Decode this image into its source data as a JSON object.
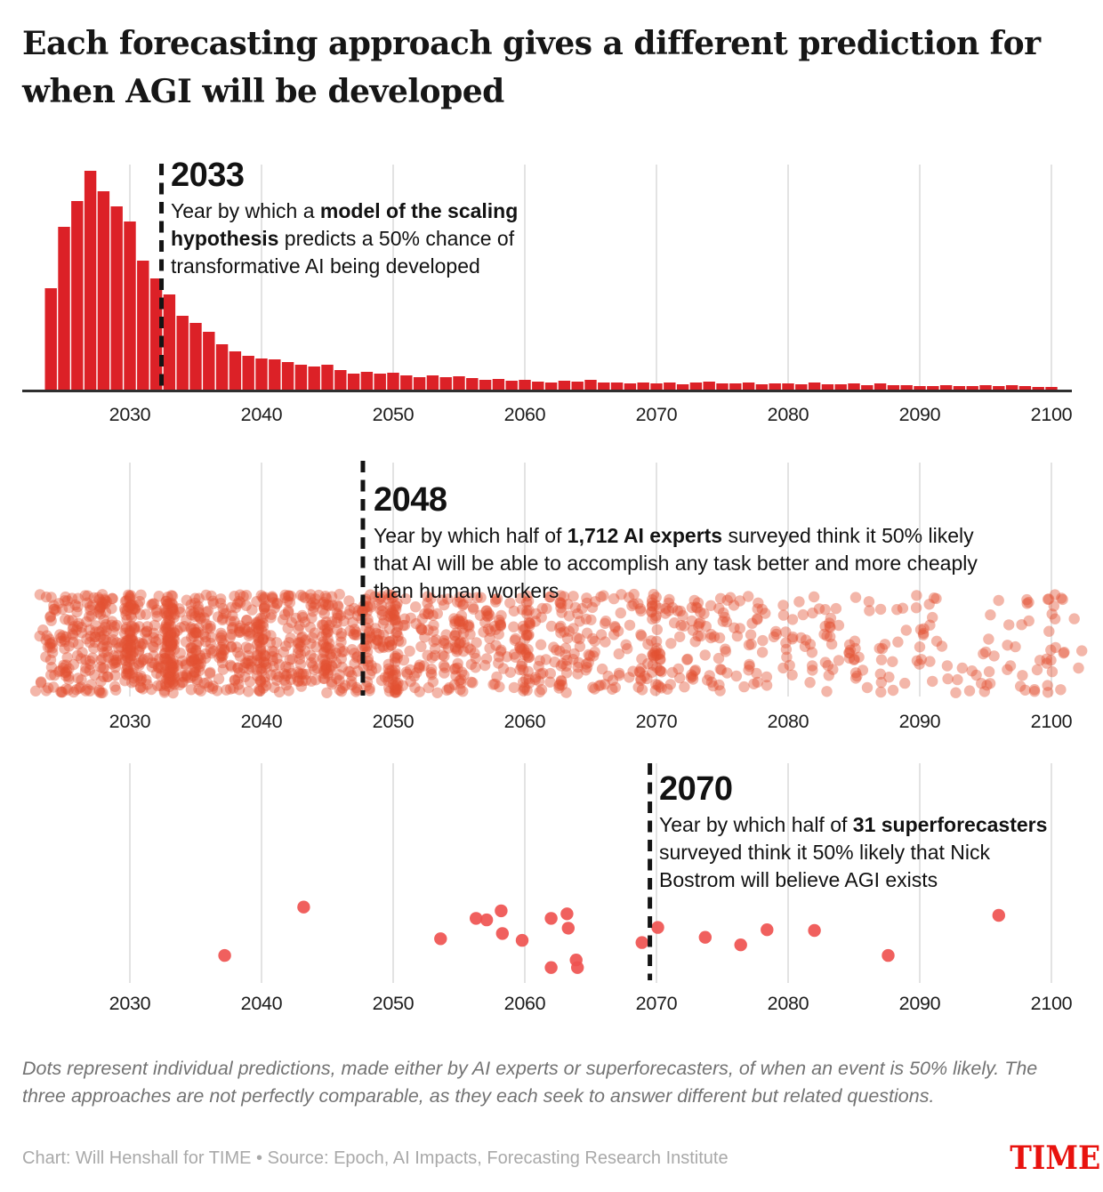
{
  "title": {
    "lines": [
      "Each forecasting approach gives a different prediction for",
      "when AGI will be developed"
    ]
  },
  "chart_data": [
    {
      "type": "bar",
      "name": "model-of-the-scaling-hypothesis",
      "callout_year": "2033",
      "callout_line_year": 2032.4,
      "callout_lines": [
        [
          {
            "t": "Year by which a "
          },
          {
            "t": "model of the scaling",
            "b": true
          }
        ],
        [
          {
            "t": "hypothesis",
            "b": true
          },
          {
            "t": " predicts a 50% chance of"
          }
        ],
        [
          {
            "t": "transformative AI being developed"
          }
        ]
      ],
      "x_start_year": 2024,
      "bin_years": 1,
      "relative_heights": [
        114,
        183,
        212,
        246,
        223,
        206,
        189,
        145,
        125,
        107,
        83,
        75,
        65,
        51,
        43,
        38,
        35,
        34,
        31,
        28,
        26,
        28,
        22,
        18,
        20,
        18,
        19,
        16,
        14,
        16,
        14,
        15,
        13,
        11,
        12,
        10,
        11,
        9,
        8,
        10,
        9,
        11,
        8,
        8,
        7,
        8,
        7,
        8,
        6,
        8,
        9,
        7,
        7,
        8,
        6,
        7,
        7,
        6,
        8,
        6,
        6,
        7,
        5,
        7,
        5,
        5,
        4,
        4,
        5,
        4,
        4,
        5,
        4,
        5,
        4,
        3,
        3
      ],
      "xlim": [
        2023,
        2101
      ],
      "x_ticks": [
        2030,
        2040,
        2050,
        2060,
        2070,
        2080,
        2090,
        2100
      ],
      "bar_color": "#dc2127"
    },
    {
      "type": "strip",
      "name": "ai-experts-survey",
      "callout_year": "2048",
      "callout_line_year": 2047.7,
      "callout_lines": [
        [
          {
            "t": "Year by which half of "
          },
          {
            "t": "1,712 AI experts",
            "b": true
          },
          {
            "t": " surveyed think it 50% likely"
          }
        ],
        [
          {
            "t": "that AI will be able  to accomplish any task better and more cheaply"
          }
        ],
        [
          {
            "t": "than human workers"
          }
        ]
      ],
      "n_dots": 1712,
      "weights_start_year": 2023,
      "year_weights": [
        4,
        14,
        28,
        24,
        26,
        30,
        24,
        60,
        22,
        24,
        85,
        20,
        40,
        22,
        24,
        26,
        20,
        55,
        18,
        22,
        30,
        20,
        45,
        18,
        20,
        28,
        16,
        42,
        12,
        14,
        18,
        12,
        25,
        12,
        14,
        16,
        10,
        30,
        8,
        10,
        22,
        10,
        18,
        8,
        8,
        10,
        14,
        25,
        8,
        10,
        20,
        8,
        14,
        6,
        8,
        8,
        5,
        12,
        4,
        8,
        6,
        4,
        8,
        4,
        5,
        6,
        3,
        10,
        3,
        4,
        6,
        3,
        8,
        3,
        4,
        5,
        3,
        12,
        4,
        5,
        3
      ],
      "xlim": [
        2023,
        2103
      ],
      "x_ticks": [
        2030,
        2040,
        2050,
        2060,
        2070,
        2080,
        2090,
        2100
      ],
      "dot_color": "#e25032",
      "dot_opacity": 0.42,
      "seed": 7
    },
    {
      "type": "scatter",
      "name": "superforecasters-survey",
      "callout_year": "2070",
      "callout_line_year": 2069.5,
      "callout_lines": [
        [
          {
            "t": "Year by which half of "
          },
          {
            "t": "31 superforecasters",
            "b": true
          }
        ],
        [
          {
            "t": "surveyed think it 50% likely that Nick"
          }
        ],
        [
          {
            "t": "Bostrom will believe AGI exists"
          }
        ]
      ],
      "points": [
        {
          "year": 2037.2,
          "jitter": 0.73
        },
        {
          "year": 2043.2,
          "jitter": 0.09
        },
        {
          "year": 2053.6,
          "jitter": 0.51
        },
        {
          "year": 2056.3,
          "jitter": 0.24
        },
        {
          "year": 2057.1,
          "jitter": 0.26
        },
        {
          "year": 2058.2,
          "jitter": 0.14
        },
        {
          "year": 2058.3,
          "jitter": 0.44
        },
        {
          "year": 2059.8,
          "jitter": 0.53
        },
        {
          "year": 2062.0,
          "jitter": 0.24
        },
        {
          "year": 2063.2,
          "jitter": 0.18
        },
        {
          "year": 2063.3,
          "jitter": 0.37
        },
        {
          "year": 2062.0,
          "jitter": 0.89
        },
        {
          "year": 2063.9,
          "jitter": 0.79
        },
        {
          "year": 2064.0,
          "jitter": 0.89
        },
        {
          "year": 2068.9,
          "jitter": 0.56
        },
        {
          "year": 2070.1,
          "jitter": 0.36
        },
        {
          "year": 2073.7,
          "jitter": 0.49
        },
        {
          "year": 2076.4,
          "jitter": 0.59
        },
        {
          "year": 2078.4,
          "jitter": 0.39
        },
        {
          "year": 2082.0,
          "jitter": 0.4
        },
        {
          "year": 2087.6,
          "jitter": 0.73
        },
        {
          "year": 2096.0,
          "jitter": 0.2
        }
      ],
      "xlim": [
        2023,
        2103
      ],
      "x_ticks": [
        2030,
        2040,
        2050,
        2060,
        2070,
        2080,
        2090,
        2100
      ],
      "dot_color": "#ef5350"
    }
  ],
  "footnote": "Dots represent individual predictions, made either by AI experts or superforecasters, of when an event is 50% likely. The three approaches are not perfectly comparable, as they each seek to answer different but related questions.",
  "credit": "Chart: Will Henshall for TIME • Source: Epoch, AI Impacts, Forecasting Research Institute",
  "logo": "TIME"
}
